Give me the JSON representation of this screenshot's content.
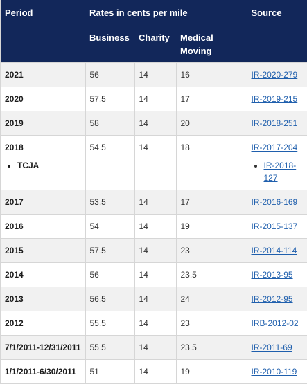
{
  "headers": {
    "period": "Period",
    "group": "Rates in cents per mile",
    "business": "Business",
    "charity": "Charity",
    "medical": "Medical Moving",
    "source": "Source"
  },
  "rows": [
    {
      "period": "2021",
      "business": "56",
      "charity": "14",
      "medical": "16",
      "source": "IR-2020-279"
    },
    {
      "period": "2020",
      "business": "57.5",
      "charity": "14",
      "medical": "17",
      "source": "IR-2019-215"
    },
    {
      "period": "2019",
      "business": "58",
      "charity": "14",
      "medical": "20",
      "source": "IR-2018-251"
    },
    {
      "period": "2018",
      "period_sub": "TCJA",
      "business": "54.5",
      "charity": "14",
      "medical": "18",
      "source": "IR-2017-204",
      "source_sub": "IR-2018-127"
    },
    {
      "period": "2017",
      "business": "53.5",
      "charity": "14",
      "medical": "17",
      "source": "IR-2016-169"
    },
    {
      "period": "2016",
      "business": "54",
      "charity": "14",
      "medical": "19",
      "source": "IR-2015-137"
    },
    {
      "period": "2015",
      "business": "57.5",
      "charity": "14",
      "medical": "23",
      "source": "IR-2014-114"
    },
    {
      "period": "2014",
      "business": "56",
      "charity": "14",
      "medical": "23.5",
      "source": "IR-2013-95"
    },
    {
      "period": "2013",
      "business": "56.5",
      "charity": "14",
      "medical": "24",
      "source": "IR-2012-95"
    },
    {
      "period": "2012",
      "business": "55.5",
      "charity": "14",
      "medical": "23",
      "source": "IRB-2012-02"
    },
    {
      "period": "7/1/2011-12/31/2011",
      "business": "55.5",
      "charity": "14",
      "medical": "23.5",
      "source": "IR-2011-69"
    },
    {
      "period": "1/1/2011-6/30/2011",
      "business": "51",
      "charity": "14",
      "medical": "19",
      "source": "IR-2010-119"
    }
  ]
}
